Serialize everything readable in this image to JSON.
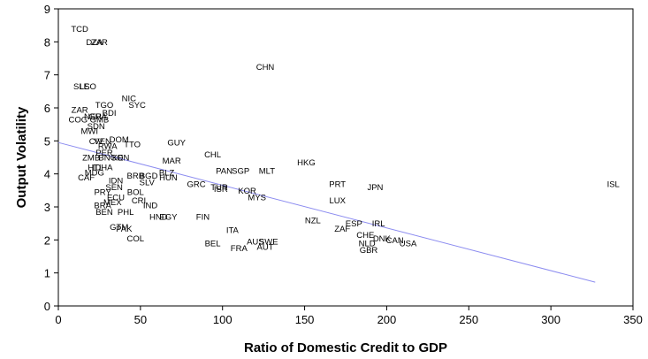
{
  "chart_data": {
    "type": "scatter",
    "title": "",
    "xlabel": "Ratio of Domestic Credit to GDP",
    "ylabel": "Output Volatility",
    "xlim": [
      0,
      350
    ],
    "ylim": [
      0,
      9
    ],
    "xticks": [
      "0",
      "50",
      "100",
      "150",
      "200",
      "250",
      "300",
      "350"
    ],
    "yticks": [
      "0",
      "1",
      "2",
      "3",
      "4",
      "5",
      "6",
      "7",
      "8",
      "9"
    ],
    "grid": false,
    "legend": "none",
    "marker": "text-label",
    "trendline": {
      "x": [
        0,
        327
      ],
      "y": [
        4.95,
        0.72
      ],
      "color": "#8c8cf0"
    },
    "points": [
      {
        "label": "TCD",
        "x": 13,
        "y": 8.4
      },
      {
        "label": "DZA",
        "x": 22,
        "y": 8.0
      },
      {
        "label": "ZAR",
        "x": 25,
        "y": 8.0
      },
      {
        "label": "CHN",
        "x": 126,
        "y": 7.25
      },
      {
        "label": "SLE",
        "x": 14,
        "y": 6.65
      },
      {
        "label": "LSO",
        "x": 18,
        "y": 6.65
      },
      {
        "label": "NIC",
        "x": 43,
        "y": 6.3
      },
      {
        "label": "SYC",
        "x": 48,
        "y": 6.1
      },
      {
        "label": "TGO",
        "x": 28,
        "y": 6.1
      },
      {
        "label": "ZAR",
        "x": 13,
        "y": 5.95
      },
      {
        "label": "BDI",
        "x": 31,
        "y": 5.85
      },
      {
        "label": "NER",
        "x": 21,
        "y": 5.75
      },
      {
        "label": "GHA",
        "x": 24,
        "y": 5.75
      },
      {
        "label": "COG",
        "x": 12,
        "y": 5.65
      },
      {
        "label": "GMB",
        "x": 25,
        "y": 5.65
      },
      {
        "label": "SDN",
        "x": 23,
        "y": 5.45
      },
      {
        "label": "MWI",
        "x": 19,
        "y": 5.3
      },
      {
        "label": "DOM",
        "x": 37,
        "y": 5.05
      },
      {
        "label": "GUY",
        "x": 72,
        "y": 4.95
      },
      {
        "label": "CIV",
        "x": 23,
        "y": 5.0
      },
      {
        "label": "VEN",
        "x": 27,
        "y": 5.0
      },
      {
        "label": "TTO",
        "x": 45,
        "y": 4.9
      },
      {
        "label": "RWA",
        "x": 30,
        "y": 4.85
      },
      {
        "label": "PER",
        "x": 28,
        "y": 4.65
      },
      {
        "label": "ZMB",
        "x": 20,
        "y": 4.5
      },
      {
        "label": "BNGO",
        "x": 32,
        "y": 4.5
      },
      {
        "label": "KEN",
        "x": 38,
        "y": 4.5
      },
      {
        "label": "CHL",
        "x": 94,
        "y": 4.6
      },
      {
        "label": "HKG",
        "x": 151,
        "y": 4.35
      },
      {
        "label": "MAR",
        "x": 69,
        "y": 4.4
      },
      {
        "label": "HTI",
        "x": 22,
        "y": 4.2
      },
      {
        "label": "IDHA",
        "x": 27,
        "y": 4.2
      },
      {
        "label": "PAN",
        "x": 101,
        "y": 4.1
      },
      {
        "label": "SGP",
        "x": 111,
        "y": 4.1
      },
      {
        "label": "MLT",
        "x": 127,
        "y": 4.1
      },
      {
        "label": "MDG",
        "x": 22,
        "y": 4.05
      },
      {
        "label": "BLZ",
        "x": 66,
        "y": 4.05
      },
      {
        "label": "BRB",
        "x": 47,
        "y": 3.95
      },
      {
        "label": "BGD",
        "x": 55,
        "y": 3.95
      },
      {
        "label": "HUN",
        "x": 67,
        "y": 3.9
      },
      {
        "label": "CAF",
        "x": 17,
        "y": 3.9
      },
      {
        "label": "IDN",
        "x": 35,
        "y": 3.8
      },
      {
        "label": "SLV",
        "x": 54,
        "y": 3.75
      },
      {
        "label": "GRC",
        "x": 84,
        "y": 3.7
      },
      {
        "label": "PRT",
        "x": 170,
        "y": 3.7
      },
      {
        "label": "JPN",
        "x": 193,
        "y": 3.6
      },
      {
        "label": "ISL",
        "x": 338,
        "y": 3.7
      },
      {
        "label": "SEN",
        "x": 34,
        "y": 3.6
      },
      {
        "label": "TUR",
        "x": 98,
        "y": 3.6
      },
      {
        "label": "ISR",
        "x": 99,
        "y": 3.55
      },
      {
        "label": "KOR",
        "x": 115,
        "y": 3.5
      },
      {
        "label": "PRY",
        "x": 27,
        "y": 3.45
      },
      {
        "label": "BOL",
        "x": 47,
        "y": 3.45
      },
      {
        "label": "MYS",
        "x": 121,
        "y": 3.3
      },
      {
        "label": "ECU",
        "x": 35,
        "y": 3.3
      },
      {
        "label": "CRI",
        "x": 49,
        "y": 3.2
      },
      {
        "label": "MEX",
        "x": 33,
        "y": 3.15
      },
      {
        "label": "BRA",
        "x": 27,
        "y": 3.05
      },
      {
        "label": "IND",
        "x": 56,
        "y": 3.05
      },
      {
        "label": "LUX",
        "x": 170,
        "y": 3.2
      },
      {
        "label": "BEN",
        "x": 28,
        "y": 2.85
      },
      {
        "label": "PHL",
        "x": 41,
        "y": 2.85
      },
      {
        "label": "HND",
        "x": 61,
        "y": 2.7
      },
      {
        "label": "EGY",
        "x": 67,
        "y": 2.7
      },
      {
        "label": "FIN",
        "x": 88,
        "y": 2.7
      },
      {
        "label": "NZL",
        "x": 155,
        "y": 2.6
      },
      {
        "label": "ESP",
        "x": 180,
        "y": 2.5
      },
      {
        "label": "IRL",
        "x": 195,
        "y": 2.5
      },
      {
        "label": "ZAF",
        "x": 173,
        "y": 2.35
      },
      {
        "label": "GTM",
        "x": 37,
        "y": 2.4
      },
      {
        "label": "PAK",
        "x": 40,
        "y": 2.35
      },
      {
        "label": "ITA",
        "x": 106,
        "y": 2.3
      },
      {
        "label": "COL",
        "x": 47,
        "y": 2.05
      },
      {
        "label": "CHE",
        "x": 187,
        "y": 2.15
      },
      {
        "label": "DNK",
        "x": 197,
        "y": 2.05
      },
      {
        "label": "CAN",
        "x": 205,
        "y": 2.0
      },
      {
        "label": "USA",
        "x": 213,
        "y": 1.9
      },
      {
        "label": "AUS",
        "x": 120,
        "y": 1.95
      },
      {
        "label": "SWE",
        "x": 128,
        "y": 1.95
      },
      {
        "label": "AUT",
        "x": 126,
        "y": 1.8
      },
      {
        "label": "NLD",
        "x": 188,
        "y": 1.9
      },
      {
        "label": "BEL",
        "x": 94,
        "y": 1.9
      },
      {
        "label": "FRA",
        "x": 110,
        "y": 1.75
      },
      {
        "label": "GBR",
        "x": 189,
        "y": 1.7
      }
    ]
  }
}
